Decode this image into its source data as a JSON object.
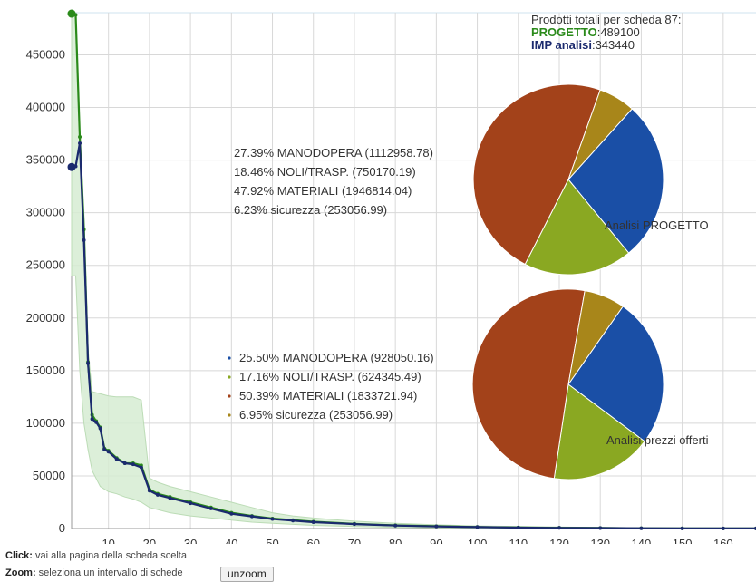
{
  "chart_data": {
    "type": "line",
    "x_ticks": [
      10,
      20,
      30,
      40,
      50,
      60,
      70,
      80,
      90,
      100,
      110,
      120,
      130,
      140,
      150,
      160
    ],
    "y_ticks": [
      0,
      50000,
      100000,
      150000,
      200000,
      250000,
      300000,
      350000,
      400000,
      450000
    ],
    "xlim": [
      1,
      168
    ],
    "ylim": [
      0,
      490000
    ],
    "grid": true,
    "series": [
      {
        "name": "PROGETTO",
        "color": "#2a8a1a",
        "x": [
          1,
          2,
          3,
          4,
          5,
          6,
          7,
          8,
          9,
          10,
          12,
          14,
          16,
          18,
          20,
          22,
          25,
          30,
          35,
          40,
          45,
          50,
          55,
          60,
          70,
          80,
          90,
          100,
          110,
          120,
          130,
          140,
          150,
          160,
          168
        ],
        "values": [
          489100,
          488000,
          372000,
          284000,
          158000,
          108000,
          102000,
          96000,
          76000,
          74000,
          67000,
          62000,
          62000,
          60000,
          37000,
          33000,
          30000,
          25000,
          20000,
          15000,
          12000,
          9500,
          8000,
          6500,
          4500,
          3000,
          2200,
          1500,
          1000,
          700,
          500,
          300,
          200,
          150,
          100
        ]
      },
      {
        "name": "IMP analisi",
        "color": "#1b2a6e",
        "x": [
          1,
          2,
          3,
          4,
          5,
          6,
          7,
          8,
          9,
          10,
          12,
          14,
          16,
          18,
          20,
          22,
          25,
          30,
          35,
          40,
          45,
          50,
          55,
          60,
          70,
          80,
          90,
          100,
          110,
          120,
          130,
          140,
          150,
          160,
          168
        ],
        "values": [
          343440,
          344000,
          366000,
          274000,
          157000,
          104000,
          101000,
          95000,
          75000,
          73000,
          66000,
          62000,
          61000,
          58000,
          36000,
          32000,
          29000,
          24000,
          19000,
          14000,
          11500,
          9000,
          7500,
          6000,
          4200,
          2800,
          2000,
          1400,
          900,
          600,
          400,
          250,
          150,
          100,
          80
        ]
      }
    ],
    "band": {
      "x": [
        1,
        2,
        3,
        4,
        5,
        6,
        8,
        10,
        12,
        14,
        16,
        18,
        20,
        22,
        25,
        30,
        35,
        40,
        45,
        50,
        55,
        60,
        70,
        80,
        90,
        100,
        120,
        140,
        168
      ],
      "upper": [
        489100,
        489100,
        380000,
        300000,
        170000,
        130000,
        128000,
        126000,
        125000,
        125000,
        125000,
        122000,
        48000,
        44000,
        40000,
        35000,
        30000,
        25000,
        20000,
        15000,
        12000,
        10000,
        7000,
        5000,
        3500,
        2500,
        1500,
        800,
        300
      ],
      "lower": [
        240000,
        240000,
        150000,
        100000,
        75000,
        55000,
        40000,
        35000,
        33000,
        30000,
        28000,
        25000,
        20000,
        18000,
        15000,
        12000,
        10000,
        8000,
        6000,
        5000,
        4000,
        3000,
        2000,
        1200,
        800,
        500,
        300,
        150,
        50
      ],
      "color": "#d6ecd2"
    },
    "totals": {
      "header": "Prodotti totali per scheda 87:",
      "progetto_label": "PROGETTO",
      "progetto_value": ":489100",
      "imp_label": "IMP  analisi",
      "imp_value": ":343440"
    },
    "pies": [
      {
        "label": "Analisi PROGETTO",
        "slices": [
          {
            "name": "MANODOPERA",
            "percent": 27.39,
            "value": "1112958.78",
            "color": "#1a4fa6",
            "text": "27.39% MANODOPERA (1112958.78)"
          },
          {
            "name": "NOLI/TRASP.",
            "percent": 18.46,
            "value": "750170.19",
            "color": "#8aa822",
            "text": "18.46% NOLI/TRASP. (750170.19)"
          },
          {
            "name": "MATERIALI",
            "percent": 47.92,
            "value": "1946814.04",
            "color": "#a3421a",
            "text": "47.92% MATERIALI (1946814.04)"
          },
          {
            "name": "sicurezza",
            "percent": 6.23,
            "value": "253056.99",
            "color": "#a8861a",
            "text": "6.23% sicurezza (253056.99)"
          }
        ]
      },
      {
        "label": "Analisi prezzi offerti",
        "slices": [
          {
            "name": "MANODOPERA",
            "percent": 25.5,
            "value": "928050.16",
            "color": "#1a4fa6",
            "text": "25.50% MANODOPERA (928050.16)"
          },
          {
            "name": "NOLI/TRASP.",
            "percent": 17.16,
            "value": "624345.49",
            "color": "#8aa822",
            "text": "17.16% NOLI/TRASP. (624345.49)"
          },
          {
            "name": "MATERIALI",
            "percent": 50.39,
            "value": "1833721.94",
            "color": "#a3421a",
            "text": "50.39% MATERIALI (1833721.94)"
          },
          {
            "name": "sicurezza",
            "percent": 6.95,
            "value": "253056.99",
            "color": "#a8861a",
            "text": "6.95% sicurezza (253056.99)"
          }
        ]
      }
    ]
  },
  "footer": {
    "click_label": "Click:",
    "click_text": " vai alla pagina della scheda scelta",
    "zoom_label": "Zoom:",
    "zoom_text": " seleziona un intervallo di schede",
    "unzoom_button": "unzoom"
  }
}
